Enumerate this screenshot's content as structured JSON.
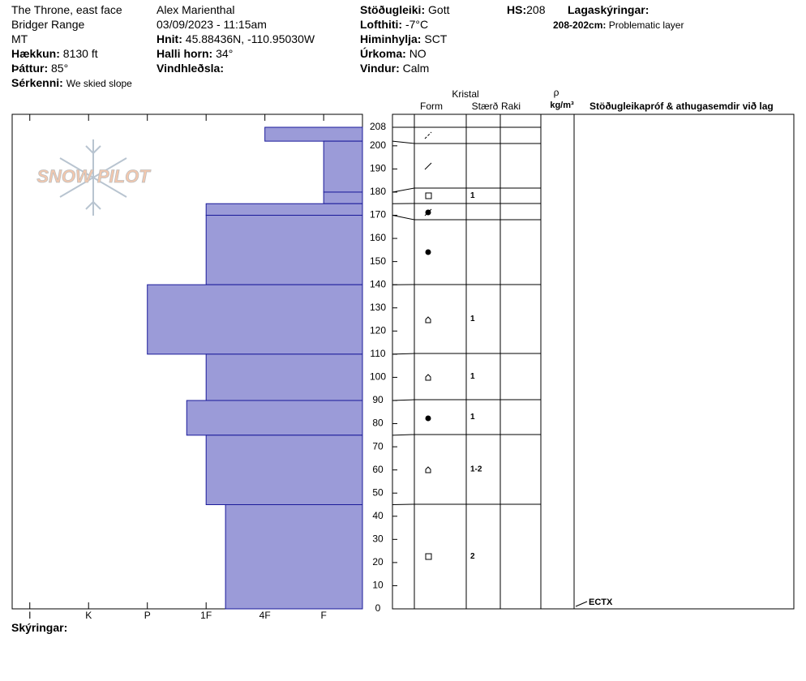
{
  "header": {
    "location": "The Throne, east face",
    "range": "Bridger Range",
    "state": "MT",
    "elevation_label": "Hækkun:",
    "elevation": "8130 ft",
    "aspect_label": "Þáttur:",
    "aspect": "85°",
    "features_label": "Sérkenni:",
    "features": "We skied slope",
    "observer": "Alex Marienthal",
    "datetime": "03/09/2023 - 11:15am",
    "coords_label": "Hnit:",
    "coords": "45.88436N, -110.95030W",
    "slope_label": "Halli horn:",
    "slope": "34°",
    "wind_loading_label": "Vindhleðsla:",
    "stability_label": "Stöðugleiki:",
    "stability": "Gott",
    "airtemp_label": "Lofthiti:",
    "airtemp": "-7°C",
    "sky_label": "Himinhylja:",
    "sky": "SCT",
    "precip_label": "Úrkoma:",
    "precip": "NO",
    "wind_label": "Vindur:",
    "wind": "Calm",
    "hs_label": "HS:",
    "hs": "208",
    "legend_label": "Lagaskýringar:",
    "layer_note_range": "208-202cm:",
    "layer_note": "Problematic layer"
  },
  "logo": "SNOW PILOT",
  "columns": {
    "crystal": "Kristal",
    "form": "Form",
    "size": "Stærð",
    "moisture": "Raki",
    "density": "ρ",
    "density_unit": "kg/m³",
    "tests": "Stöðugleikapróf & athugasemdir við lag"
  },
  "footer": "Skýringar:",
  "chart_data": {
    "type": "snow_profile",
    "ylim": [
      0,
      208
    ],
    "yticks": [
      0,
      10,
      20,
      30,
      40,
      50,
      60,
      70,
      80,
      90,
      100,
      110,
      120,
      130,
      140,
      150,
      160,
      170,
      180,
      190,
      200,
      208
    ],
    "xlim": [
      6.3,
      0.34
    ],
    "xticks": [
      {
        "value": 6,
        "label": "I"
      },
      {
        "value": 5,
        "label": "K"
      },
      {
        "value": 4,
        "label": "P"
      },
      {
        "value": 3,
        "label": "1F"
      },
      {
        "value": 2,
        "label": "4F"
      },
      {
        "value": 1,
        "label": "F"
      }
    ],
    "color": "#9b9bd8",
    "layers": {
      "top": [
        208,
        202,
        180,
        175,
        170,
        140,
        110,
        90,
        75,
        45
      ],
      "bottom": [
        202,
        180,
        175,
        170,
        140,
        110,
        90,
        75,
        45,
        0
      ],
      "hardness": [
        2,
        1,
        1,
        3,
        3,
        4,
        3,
        3.33,
        3,
        2.67
      ],
      "grain_size": [
        null,
        null,
        1,
        null,
        null,
        1,
        1,
        1,
        "1-2",
        2
      ]
    },
    "tests": [
      {
        "depth": 0,
        "label": "ECTX"
      }
    ]
  }
}
